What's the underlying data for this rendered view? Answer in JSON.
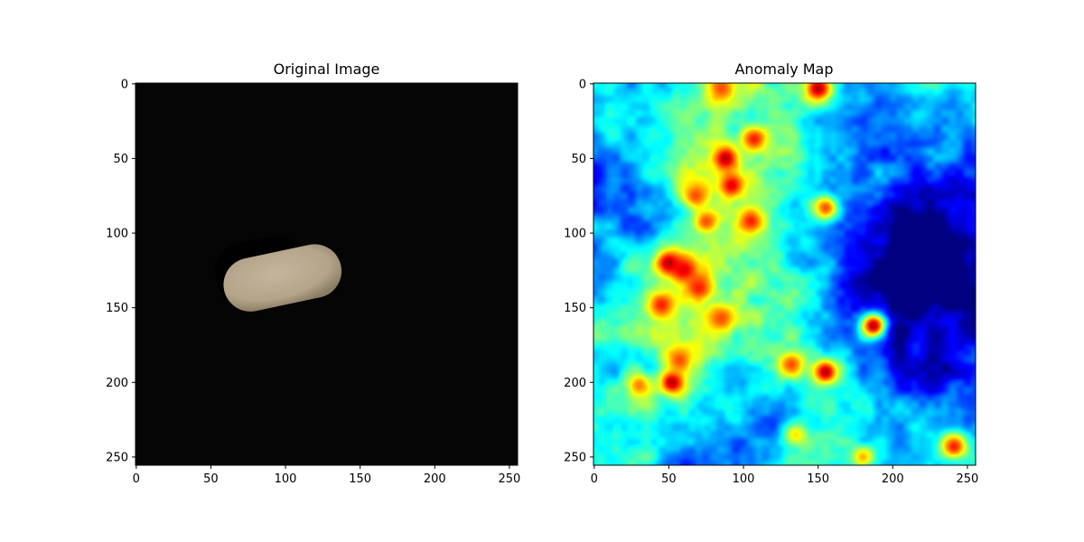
{
  "chart_data": [
    {
      "type": "heatmap",
      "title": "Original Image",
      "xlim": [
        0,
        255
      ],
      "ylim": [
        255,
        0
      ],
      "xticks": [
        0,
        50,
        100,
        150,
        200,
        250
      ],
      "yticks": [
        0,
        50,
        100,
        150,
        200,
        250
      ],
      "xtick_labels": [
        "0",
        "50",
        "100",
        "150",
        "200",
        "250"
      ],
      "ytick_labels": [
        "0",
        "50",
        "100",
        "150",
        "200",
        "250"
      ],
      "grid": false,
      "background_color": "#050505",
      "object": {
        "shape": "elongated pebble",
        "color": "#b3a48a",
        "center": [
          98,
          130
        ],
        "length": 80,
        "width": 36,
        "angle_deg": -12
      }
    },
    {
      "type": "heatmap",
      "title": "Anomaly Map",
      "colormap": "jet",
      "xlim": [
        0,
        255
      ],
      "ylim": [
        255,
        0
      ],
      "xticks": [
        0,
        50,
        100,
        150,
        200,
        250
      ],
      "yticks": [
        0,
        50,
        100,
        150,
        200,
        250
      ],
      "xtick_labels": [
        "0",
        "50",
        "100",
        "150",
        "200",
        "250"
      ],
      "ytick_labels": [
        "0",
        "50",
        "100",
        "150",
        "200",
        "250"
      ],
      "grid": false,
      "hotspots": [
        {
          "x": 88,
          "y": 50,
          "v": 0.95
        },
        {
          "x": 92,
          "y": 68,
          "v": 0.9
        },
        {
          "x": 107,
          "y": 37,
          "v": 0.85
        },
        {
          "x": 150,
          "y": 3,
          "v": 0.95
        },
        {
          "x": 85,
          "y": 3,
          "v": 0.8
        },
        {
          "x": 68,
          "y": 75,
          "v": 0.8
        },
        {
          "x": 75,
          "y": 92,
          "v": 0.8
        },
        {
          "x": 105,
          "y": 92,
          "v": 0.85
        },
        {
          "x": 155,
          "y": 83,
          "v": 0.8
        },
        {
          "x": 50,
          "y": 120,
          "v": 0.95
        },
        {
          "x": 60,
          "y": 125,
          "v": 0.9
        },
        {
          "x": 70,
          "y": 137,
          "v": 0.85
        },
        {
          "x": 45,
          "y": 148,
          "v": 0.85
        },
        {
          "x": 85,
          "y": 157,
          "v": 0.8
        },
        {
          "x": 187,
          "y": 162,
          "v": 0.95
        },
        {
          "x": 155,
          "y": 193,
          "v": 0.95
        },
        {
          "x": 132,
          "y": 188,
          "v": 0.8
        },
        {
          "x": 52,
          "y": 200,
          "v": 0.95
        },
        {
          "x": 57,
          "y": 185,
          "v": 0.8
        },
        {
          "x": 30,
          "y": 202,
          "v": 0.75
        },
        {
          "x": 241,
          "y": 243,
          "v": 0.85
        },
        {
          "x": 180,
          "y": 250,
          "v": 0.7
        },
        {
          "x": 135,
          "y": 235,
          "v": 0.65
        }
      ],
      "warm_zones": [
        {
          "x": 80,
          "y": 60,
          "r": 45,
          "v": 0.55
        },
        {
          "x": 60,
          "y": 130,
          "r": 50,
          "v": 0.55
        },
        {
          "x": 110,
          "y": 175,
          "r": 55,
          "v": 0.45
        },
        {
          "x": 60,
          "y": 200,
          "r": 40,
          "v": 0.5
        },
        {
          "x": 140,
          "y": 30,
          "r": 50,
          "v": 0.45
        },
        {
          "x": 160,
          "y": 200,
          "r": 40,
          "v": 0.5
        }
      ],
      "cold_zones": [
        {
          "x": 220,
          "y": 90,
          "r": 55
        },
        {
          "x": 230,
          "y": 170,
          "r": 40
        },
        {
          "x": 20,
          "y": 90,
          "r": 40
        },
        {
          "x": 90,
          "y": 235,
          "r": 40
        },
        {
          "x": 200,
          "y": 120,
          "r": 35
        }
      ]
    }
  ]
}
